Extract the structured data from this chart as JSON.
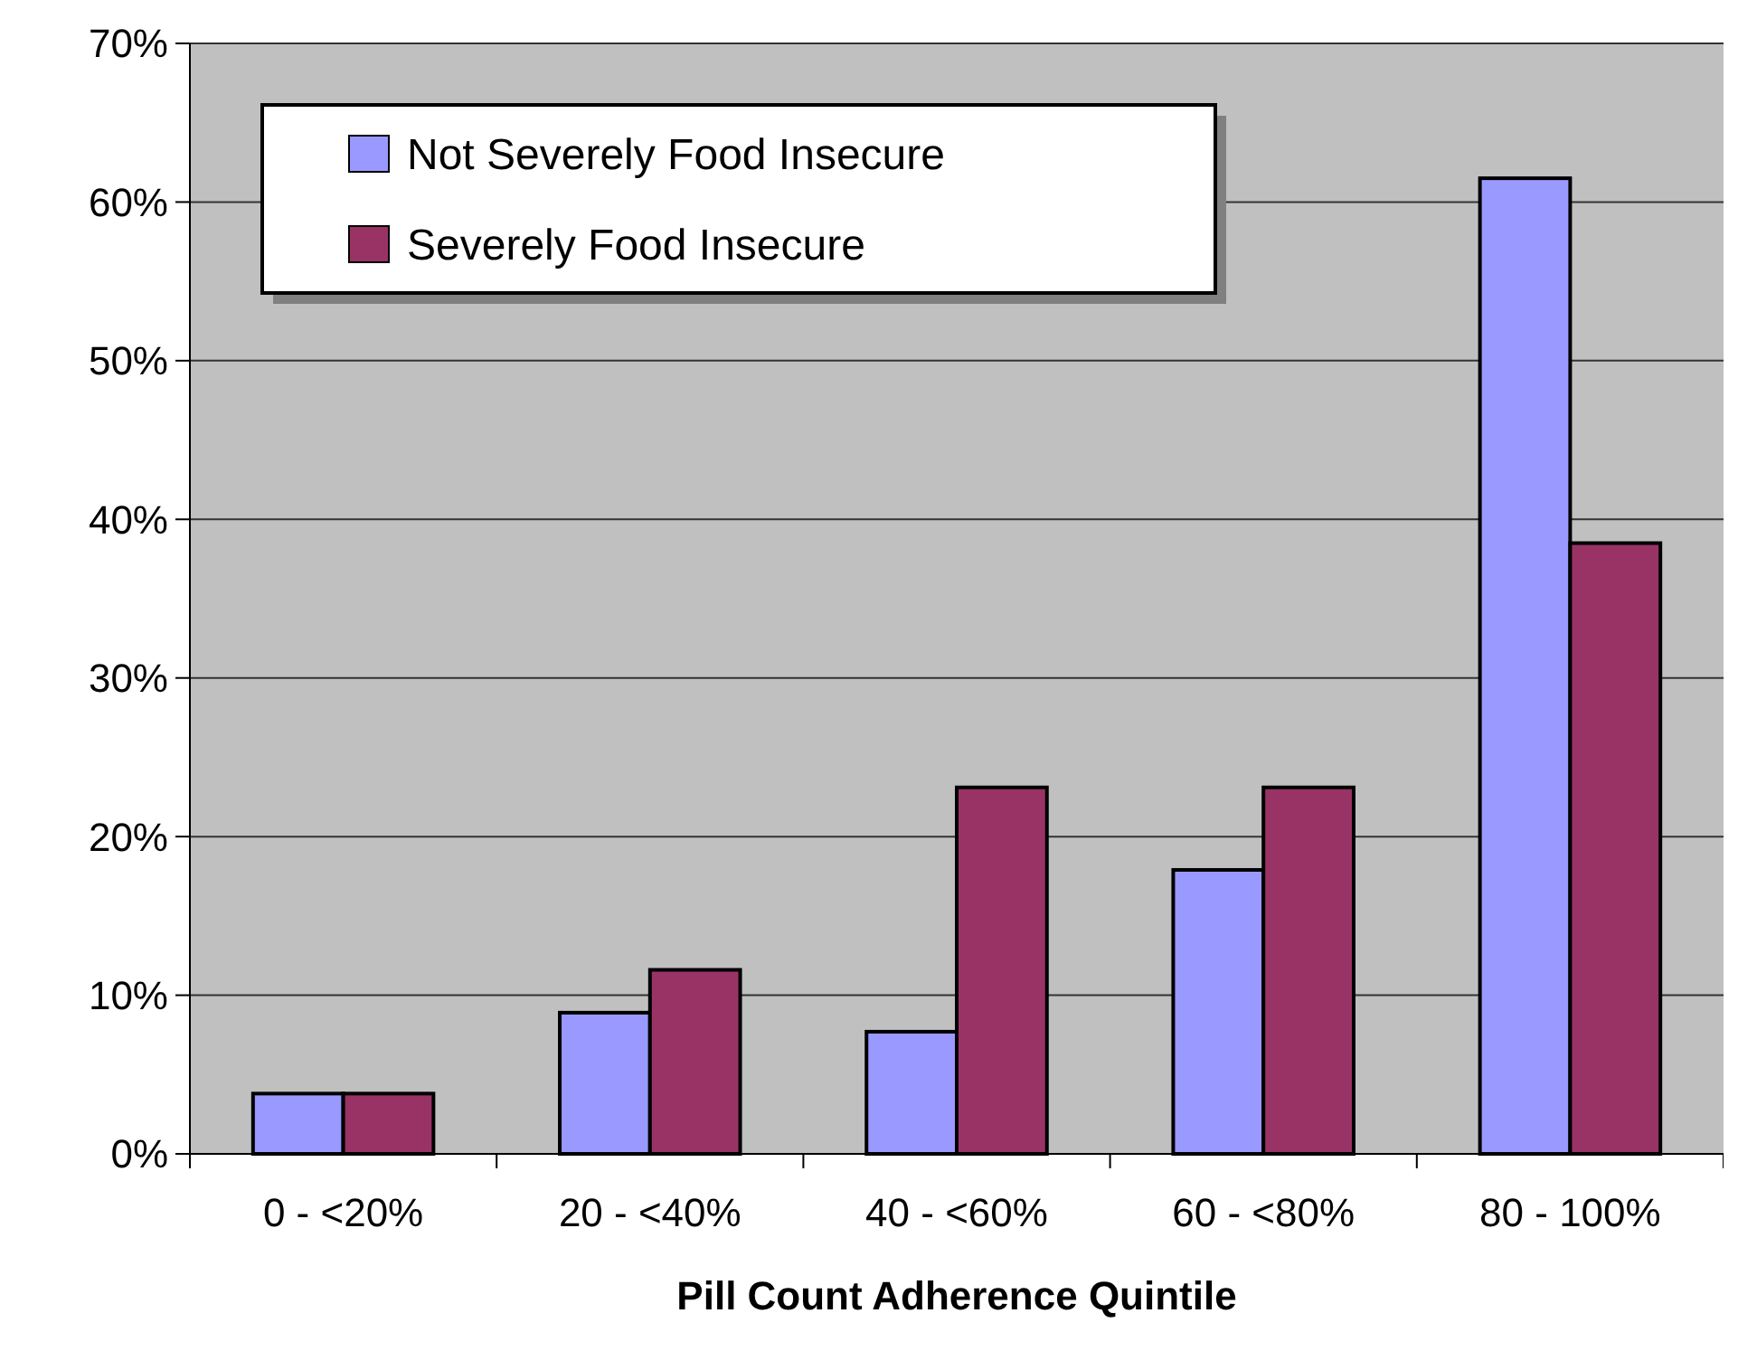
{
  "chart_data": {
    "type": "bar",
    "xlabel": "Pill Count Adherence Quintile",
    "categories": [
      "0 - <20%",
      "20 - <40%",
      "40 - <60%",
      "60 - <80%",
      "80 - 100%"
    ],
    "series": [
      {
        "name": "Not Severely Food Insecure",
        "color": "#9999ff",
        "values": [
          3.8,
          8.9,
          7.7,
          17.9,
          61.5
        ]
      },
      {
        "name": "Severely Food Insecure",
        "color": "#993366",
        "values": [
          3.8,
          11.6,
          23.1,
          23.1,
          38.5
        ]
      }
    ],
    "ylim": [
      0,
      70
    ],
    "yticks": [
      {
        "value": 0,
        "label": "0%"
      },
      {
        "value": 10,
        "label": "10%"
      },
      {
        "value": 20,
        "label": "20%"
      },
      {
        "value": 30,
        "label": "30%"
      },
      {
        "value": 40,
        "label": "40%"
      },
      {
        "value": 50,
        "label": "50%"
      },
      {
        "value": 60,
        "label": "60%"
      },
      {
        "value": 70,
        "label": "70%"
      }
    ],
    "grid": "y",
    "legend": "top left"
  }
}
